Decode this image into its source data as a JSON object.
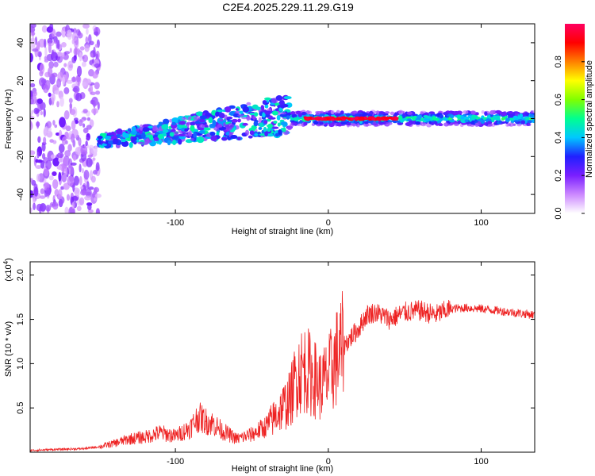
{
  "title": "C2E4.2025.229.11.29.G19",
  "chart_data": [
    {
      "type": "heatmap",
      "xlabel": "Height of straight line (km)",
      "ylabel": "Frequency (Hz)",
      "xlim": [
        -195,
        135
      ],
      "ylim": [
        -50,
        50
      ],
      "x_ticks": [
        -100,
        0,
        100
      ],
      "x_tick_labels": [
        "-100",
        "0",
        "100"
      ],
      "y_ticks": [
        -40,
        -20,
        0,
        20,
        40
      ],
      "y_tick_labels": [
        "-40",
        "-20",
        "0",
        "20",
        "40"
      ],
      "colorbar": {
        "label": "Normalized spectral amplitude",
        "range": [
          0,
          1
        ],
        "ticks": [
          0.0,
          0.2,
          0.4,
          0.6,
          0.8
        ],
        "tick_labels": [
          "0.0",
          "0.2",
          "0.4",
          "0.6",
          "0.8"
        ],
        "colors": [
          "#ffffff",
          "#cc88ff",
          "#7a1fff",
          "#2020ff",
          "#00c8ff",
          "#00ff90",
          "#80ff00",
          "#ffff00",
          "#ff8000",
          "#ff0000",
          "#ff0060"
        ]
      },
      "features": [
        {
          "x_range": [
            -195,
            -150
          ],
          "freq_range": [
            -50,
            50
          ],
          "amplitude": 0.15
        },
        {
          "x_range": [
            -150,
            -25
          ],
          "freq_center_start": -12,
          "freq_center_end": 2,
          "amplitude": 0.35
        },
        {
          "x_range": [
            -25,
            135
          ],
          "freq_center": 0,
          "amplitude": 0.45
        },
        {
          "x_range": [
            -15,
            45
          ],
          "freq_center": 0,
          "amplitude": 0.95
        }
      ]
    },
    {
      "type": "line",
      "xlabel": "Height of straight line (km)",
      "ylabel": "SNR (10 * v/v)",
      "yunit": "(x10^4)",
      "xlim": [
        -195,
        135
      ],
      "ylim": [
        0,
        2.15
      ],
      "x_ticks": [
        -100,
        0,
        100
      ],
      "x_tick_labels": [
        "-100",
        "0",
        "100"
      ],
      "y_ticks": [
        0.5,
        1.0,
        1.5,
        2.0
      ],
      "y_tick_labels": [
        "0.5",
        "1.0",
        "1.5",
        "2.0"
      ],
      "color": "#ee2222",
      "series": [
        {
          "x": [
            -195,
            -180,
            -160,
            -150,
            -140,
            -130,
            -120,
            -110,
            -100,
            -90,
            -85,
            -80,
            -75,
            -70,
            -60,
            -50,
            -40,
            -30,
            -25,
            -20,
            -15,
            -10,
            -5,
            0,
            5,
            10,
            15,
            20,
            25,
            30,
            35,
            40,
            50,
            60,
            70,
            80,
            90,
            100,
            110,
            120,
            135
          ],
          "y": [
            0.02,
            0.03,
            0.04,
            0.06,
            0.1,
            0.15,
            0.17,
            0.22,
            0.18,
            0.28,
            0.4,
            0.35,
            0.32,
            0.25,
            0.15,
            0.2,
            0.3,
            0.5,
            0.6,
            0.9,
            0.95,
            0.85,
            0.75,
            0.85,
            1.05,
            1.2,
            1.3,
            1.4,
            1.55,
            1.58,
            1.55,
            1.5,
            1.58,
            1.6,
            1.55,
            1.62,
            1.63,
            1.62,
            1.6,
            1.58,
            1.55
          ]
        }
      ]
    }
  ]
}
